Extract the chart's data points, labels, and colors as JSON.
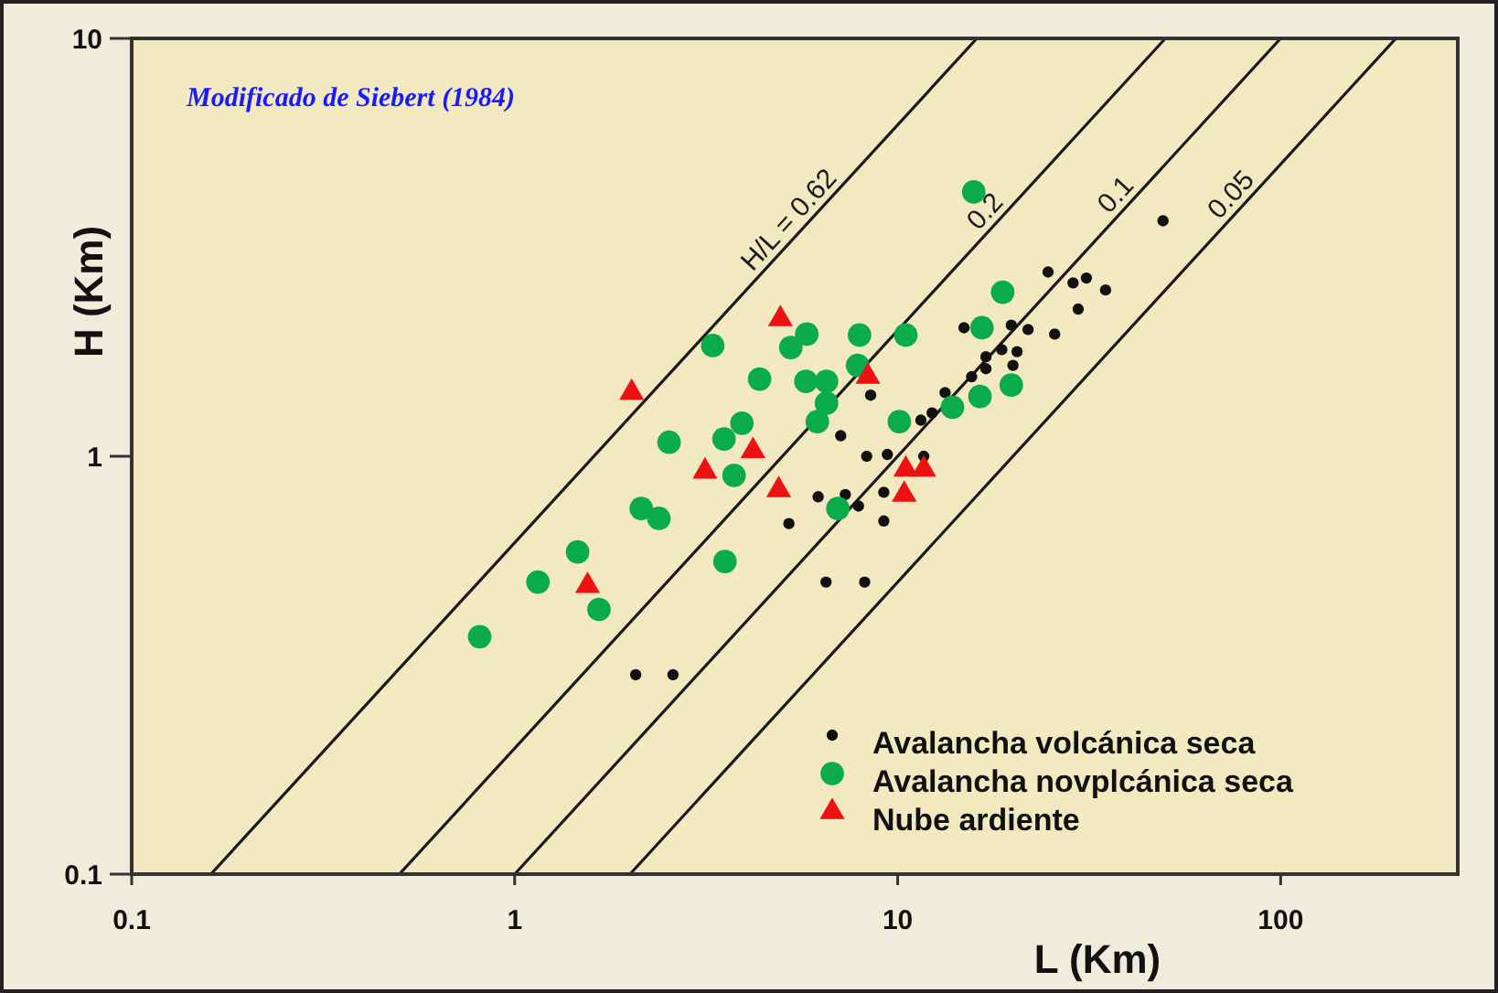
{
  "chart_data": {
    "type": "scatter",
    "xlabel": "L (Km)",
    "ylabel": "H (Km)",
    "log": "xy",
    "xlim": [
      0.1,
      290
    ],
    "ylim": [
      0.1,
      10
    ],
    "xticks": [
      0.1,
      1,
      10,
      100
    ],
    "yticks": [
      0.1,
      1,
      10
    ],
    "grid": false,
    "legend": "bottom right",
    "annotations": [
      "Modificado de Siebert (1984)"
    ],
    "series": [
      {
        "type": "line",
        "name": "H/L = 0.62",
        "color": "#1a1a1a",
        "x": [
          0.161,
          16.1
        ],
        "values": [
          0.1,
          10
        ],
        "line_style": "solid"
      },
      {
        "type": "line",
        "name": "0.2",
        "color": "#1a1a1a",
        "x": [
          0.5,
          50
        ],
        "values": [
          0.1,
          10
        ],
        "line_style": "solid"
      },
      {
        "type": "line",
        "name": "0.1",
        "color": "#1a1a1a",
        "x": [
          1,
          100
        ],
        "values": [
          0.1,
          10
        ],
        "line_style": "solid"
      },
      {
        "type": "line",
        "name": "0.05",
        "color": "#1a1a1a",
        "x": [
          2,
          200
        ],
        "values": [
          0.1,
          10
        ],
        "line_style": "solid"
      },
      {
        "name": "Avalancha volcánica seca",
        "color": "#111111",
        "marker": "circle",
        "x": [
          2.07,
          2.59,
          5.2,
          6.5,
          8.2,
          6.2,
          7.3,
          7.9,
          9.2,
          9.2,
          7.1,
          8.3,
          9.4,
          11.7,
          8.5,
          11.5,
          12.3,
          13.3,
          14.9,
          15.6,
          17.0,
          17.0,
          18.7,
          19.8,
          21.9,
          20.5,
          20.0,
          24.7,
          25.7,
          28.7,
          31.1,
          29.6,
          34.9,
          49.3
        ],
        "values": [
          0.3,
          0.3,
          0.69,
          0.5,
          0.5,
          0.8,
          0.81,
          0.76,
          0.82,
          0.7,
          1.12,
          1.0,
          1.01,
          1.0,
          1.4,
          1.22,
          1.27,
          1.42,
          2.03,
          1.55,
          1.62,
          1.73,
          1.8,
          2.06,
          2.01,
          1.78,
          1.65,
          2.76,
          1.96,
          2.6,
          2.67,
          2.25,
          2.5,
          3.66
        ]
      },
      {
        "name": "Avalancha novplcánica seca",
        "color": "#0aab4a",
        "marker": "circle",
        "x": [
          0.81,
          1.15,
          1.46,
          1.66,
          2.14,
          2.38,
          2.53,
          3.29,
          3.54,
          3.52,
          3.74,
          3.92,
          4.36,
          5.26,
          5.79,
          5.76,
          6.52,
          6.52,
          6.17,
          6.98,
          7.95,
          7.86,
          10.5,
          10.1,
          13.9,
          15.8,
          16.6,
          16.4,
          18.8,
          19.8
        ],
        "values": [
          0.37,
          0.5,
          0.59,
          0.43,
          0.75,
          0.71,
          1.08,
          1.84,
          0.56,
          1.1,
          0.9,
          1.2,
          1.53,
          1.82,
          1.96,
          1.51,
          1.51,
          1.34,
          1.21,
          0.75,
          1.95,
          1.65,
          1.95,
          1.21,
          1.31,
          4.29,
          2.03,
          1.39,
          2.47,
          1.48
        ]
      },
      {
        "name": "Nube ardiente",
        "color": "#ee1111",
        "marker": "triangle",
        "x": [
          2.02,
          1.55,
          3.14,
          4.19,
          4.94,
          4.89,
          8.36,
          10.4,
          10.5,
          11.7
        ],
        "values": [
          1.42,
          0.49,
          0.92,
          1.03,
          2.13,
          0.83,
          1.55,
          0.81,
          0.93,
          0.93
        ]
      }
    ]
  }
}
